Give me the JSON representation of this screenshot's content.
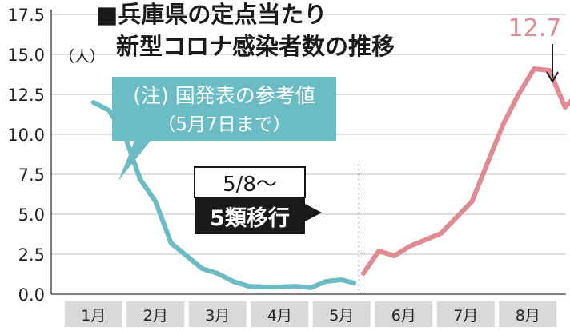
{
  "chart_data": {
    "type": "line",
    "title_lines": [
      "■兵庫県の定点当たり",
      "新型コロナ感染者数の推移"
    ],
    "unit_label": "（人）",
    "ylim": [
      0,
      17.5
    ],
    "y_ticks": [
      "0.0",
      "2.5",
      "5.0",
      "7.5",
      "10.0",
      "12.5",
      "15.0",
      "17.5"
    ],
    "categories": [
      "1月",
      "2月",
      "3月",
      "4月",
      "5月",
      "6月",
      "7月",
      "8月"
    ],
    "grid": true,
    "series": [
      {
        "color": "#6cbcc6",
        "x": [
          0.0,
          0.25,
          0.5,
          0.75,
          1.0,
          1.25,
          1.5,
          1.75,
          2.0,
          2.25,
          2.5,
          2.75,
          3.0,
          3.25,
          3.5,
          3.75,
          4.0,
          4.2
        ],
        "values": [
          12.0,
          11.5,
          10.0,
          7.2,
          5.8,
          3.2,
          2.4,
          1.6,
          1.3,
          0.8,
          0.5,
          0.45,
          0.45,
          0.5,
          0.4,
          0.8,
          0.9,
          0.7
        ]
      },
      {
        "color": "#e08a92",
        "x": [
          4.35,
          4.6,
          4.85,
          5.1,
          5.35,
          5.6,
          5.85,
          6.1,
          6.35,
          6.6,
          6.85,
          7.1,
          7.35,
          7.6,
          7.85
        ],
        "values": [
          1.3,
          2.7,
          2.4,
          3.0,
          3.4,
          3.8,
          4.8,
          5.8,
          8.2,
          10.6,
          12.5,
          14.1,
          14.0,
          11.7,
          12.7
        ]
      }
    ],
    "annotations": {
      "note_lines": [
        "(注) 国発表の参考値",
        "（5月7日まで）"
      ],
      "transition_date": "5/8～",
      "transition_label": "5類移行",
      "last_value_label": "12.7"
    }
  }
}
